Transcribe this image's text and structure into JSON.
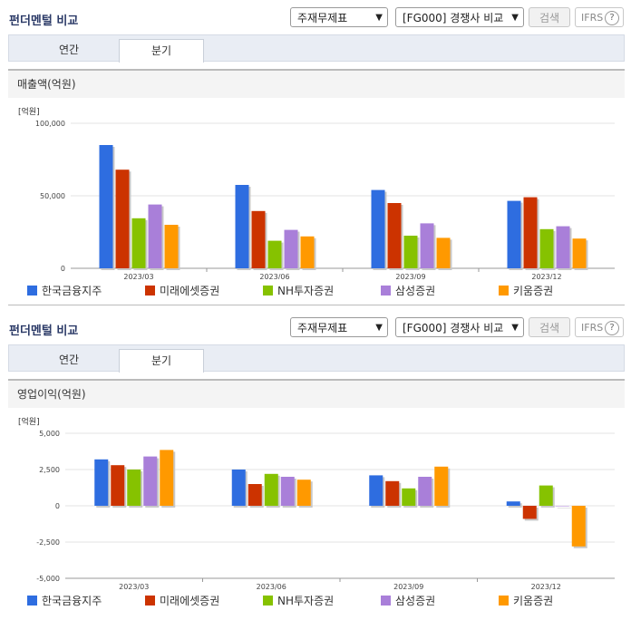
{
  "panels": [
    {
      "title": "펀더멘털 비교",
      "select_type": "주재무제표",
      "select_group": "[FG000] 경쟁사 비교",
      "search_label": "검색",
      "ifrs_label": "IFRS",
      "help_glyph": "?",
      "tabs": [
        {
          "label": "연간"
        },
        {
          "label": "분기"
        }
      ],
      "active_tab": "분기",
      "metric_title": "매출액(억원)"
    },
    {
      "title": "펀더멘털 비교",
      "select_type": "주재무제표",
      "select_group": "[FG000] 경쟁사 비교",
      "search_label": "검색",
      "ifrs_label": "IFRS",
      "help_glyph": "?",
      "tabs": [
        {
          "label": "연간"
        },
        {
          "label": "분기"
        }
      ],
      "active_tab": "분기",
      "metric_title": "영업이익(억원)"
    }
  ],
  "chart_data": [
    {
      "type": "bar",
      "title": "매출액(억원)",
      "ylabel": "[억원]",
      "categories": [
        "2023/03",
        "2023/06",
        "2023/09",
        "2023/12"
      ],
      "ylim": [
        0,
        100000
      ],
      "yticks": [
        0,
        50000,
        100000
      ],
      "ytick_labels": [
        "0",
        "50,000",
        "100,000"
      ],
      "grid": true,
      "legend_position": "bottom",
      "series": [
        {
          "name": "한국금융지주",
          "color": "#2e6de0",
          "values": [
            85000,
            57500,
            54000,
            46500
          ]
        },
        {
          "name": "미래에셋증권",
          "color": "#cc3300",
          "values": [
            68000,
            39500,
            45000,
            49000
          ]
        },
        {
          "name": "NH투자증권",
          "color": "#86c200",
          "values": [
            34500,
            19000,
            22500,
            27000
          ]
        },
        {
          "name": "삼성증권",
          "color": "#a97fd9",
          "values": [
            44000,
            26500,
            31000,
            29000
          ]
        },
        {
          "name": "키움증권",
          "color": "#ff9900",
          "values": [
            30000,
            22000,
            21000,
            20500
          ]
        }
      ]
    },
    {
      "type": "bar",
      "title": "영업이익(억원)",
      "ylabel": "[억원]",
      "categories": [
        "2023/03",
        "2023/06",
        "2023/09",
        "2023/12"
      ],
      "ylim": [
        -5000,
        5000
      ],
      "yticks": [
        -5000,
        -2500,
        0,
        2500,
        5000
      ],
      "ytick_labels": [
        "-5,000",
        "-2,500",
        "0",
        "2,500",
        "5,000"
      ],
      "grid": true,
      "legend_position": "bottom",
      "series": [
        {
          "name": "한국금융지주",
          "color": "#2e6de0",
          "values": [
            3200,
            2500,
            2100,
            300
          ]
        },
        {
          "name": "미래에셋증권",
          "color": "#cc3300",
          "values": [
            2800,
            1500,
            1700,
            -900
          ]
        },
        {
          "name": "NH투자증권",
          "color": "#86c200",
          "values": [
            2500,
            2200,
            1200,
            1400
          ]
        },
        {
          "name": "삼성증권",
          "color": "#a97fd9",
          "values": [
            3400,
            2000,
            2000,
            0
          ]
        },
        {
          "name": "키움증권",
          "color": "#ff9900",
          "values": [
            3850,
            1800,
            2700,
            -2800
          ]
        }
      ]
    }
  ]
}
